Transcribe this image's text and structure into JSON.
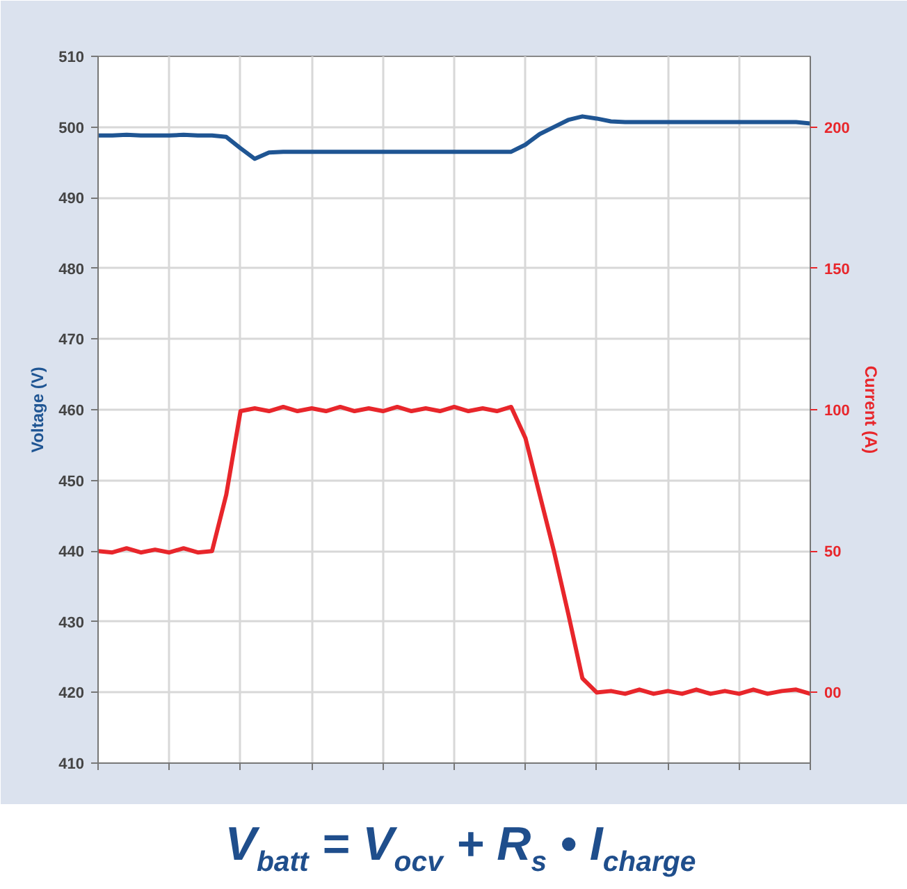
{
  "chart_data": {
    "type": "line",
    "ylabel": "Voltage (V)",
    "y2label": "Current (A)",
    "categories": [
      null,
      null,
      null,
      null,
      null,
      null,
      null,
      null,
      null,
      null,
      null,
      null,
      null,
      null,
      null,
      null,
      null,
      null,
      null,
      null,
      null,
      null,
      null,
      null,
      null,
      null,
      null,
      null,
      null,
      null,
      null,
      null,
      null,
      null,
      null,
      null,
      null,
      null,
      null,
      null,
      null,
      null,
      null,
      null,
      null,
      null,
      null,
      null,
      null,
      null,
      null
    ],
    "series": [
      {
        "color": "#1f5593",
        "values": [
          498.8,
          498.8,
          498.9,
          498.8,
          498.8,
          498.8,
          498.9,
          498.8,
          498.8,
          498.6,
          497,
          495.5,
          496.4,
          496.5,
          496.5,
          496.5,
          496.5,
          496.5,
          496.5,
          496.5,
          496.5,
          496.5,
          496.5,
          496.5,
          496.5,
          496.5,
          496.5,
          496.5,
          496.5,
          496.5,
          497.5,
          499,
          500,
          501,
          501.5,
          501.2,
          500.8,
          500.7,
          500.7,
          500.7,
          500.7,
          500.7,
          500.7,
          500.7,
          500.7,
          500.7,
          500.7,
          500.7,
          500.7,
          500.7,
          500.5
        ]
      },
      {
        "axis": "y2",
        "color": "#e8262b",
        "values": [
          50,
          49.5,
          51,
          49.5,
          50.5,
          49.5,
          51,
          49.5,
          50,
          70,
          99.5,
          100.5,
          99.5,
          101,
          99.5,
          100.5,
          99.5,
          101,
          99.5,
          100.5,
          99.5,
          101,
          99.5,
          100.5,
          99.5,
          101,
          99.5,
          100.5,
          99.5,
          101,
          90,
          70,
          50,
          28,
          5,
          0,
          0.5,
          -0.5,
          1,
          -0.5,
          0.5,
          -0.5,
          1,
          -0.5,
          0.5,
          -0.5,
          1,
          -0.5,
          0.5,
          1,
          -0.5
        ]
      }
    ],
    "ylim": [
      410,
      510
    ],
    "yticks": [
      410,
      420,
      430,
      440,
      450,
      460,
      470,
      480,
      490,
      500,
      510
    ],
    "y2lim": [
      -25,
      225
    ],
    "y2ticks": [
      {
        "value": 0,
        "label": "00"
      },
      50,
      100,
      150,
      200
    ],
    "grid": true,
    "marker": "none",
    "line_style": "solid",
    "annotations": [
      "V$_{batt}$ = V$_{ocv}$ + R$_{s}$ • I$_{charge}$"
    ]
  }
}
